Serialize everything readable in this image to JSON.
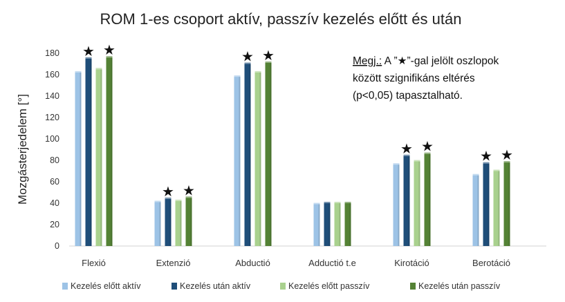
{
  "chart_data": {
    "type": "bar",
    "title": "ROM 1-es csoport aktív, passzív kezelés előtt és után",
    "ylabel": "Mozgásterjedelem [°]",
    "xlabel": "",
    "ylim": [
      0,
      180
    ],
    "yticks": [
      0,
      20,
      40,
      60,
      80,
      100,
      120,
      140,
      160,
      180
    ],
    "categories": [
      "Flexió",
      "Extenzió",
      "Abductió",
      "Adductió t.e",
      "Kirotáció",
      "Berotáció"
    ],
    "series": [
      {
        "name": "Kezelés előtt aktív",
        "color": "#9dc3e6",
        "values": [
          162,
          41,
          158,
          39,
          76,
          66
        ]
      },
      {
        "name": "Kezelés után aktív",
        "color": "#1f4e79",
        "values": [
          175,
          44,
          170,
          40,
          84,
          77
        ]
      },
      {
        "name": "Kezelés előtt passzív",
        "color": "#a9d18e",
        "values": [
          165,
          42,
          162,
          40,
          79,
          70
        ]
      },
      {
        "name": "Kezelés után passzív",
        "color": "#548235",
        "values": [
          176,
          45,
          171,
          40,
          86,
          78
        ]
      }
    ],
    "significance_stars": [
      {
        "category": 0,
        "series": 1
      },
      {
        "category": 0,
        "series": 3
      },
      {
        "category": 1,
        "series": 1
      },
      {
        "category": 1,
        "series": 3
      },
      {
        "category": 2,
        "series": 1
      },
      {
        "category": 2,
        "series": 3
      },
      {
        "category": 4,
        "series": 1
      },
      {
        "category": 4,
        "series": 3
      },
      {
        "category": 5,
        "series": 1
      },
      {
        "category": 5,
        "series": 3
      }
    ],
    "star_symbol": "★",
    "legend_position": "bottom",
    "grid": false
  },
  "note": {
    "label": "Megj.:",
    "line1_rest": " A ”★”-gal jelölt oszlopok",
    "line2": "között szignifikáns eltérés",
    "line3": "(p<0,05) tapasztalható."
  }
}
